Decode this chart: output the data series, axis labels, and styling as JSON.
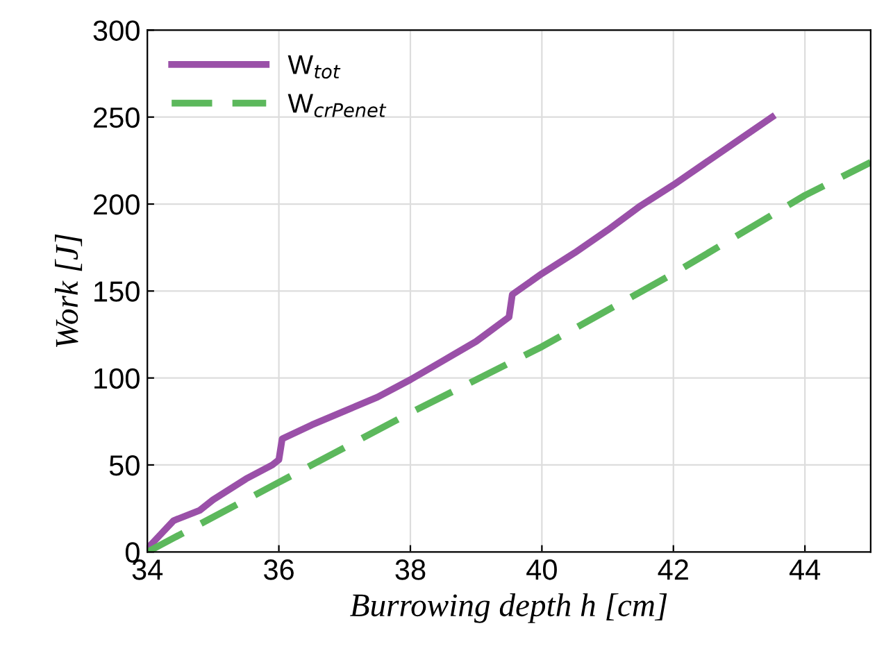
{
  "chart_data": {
    "type": "line",
    "xlabel": "Burrowing depth h [cm]",
    "ylabel": "Work [J]",
    "xlim": [
      34,
      45
    ],
    "xticks": [
      34,
      36,
      38,
      40,
      42,
      44
    ],
    "ylim": [
      0,
      300
    ],
    "yticks": [
      0,
      50,
      100,
      150,
      200,
      250,
      300
    ],
    "grid": true,
    "legend": "top left",
    "marker": "none",
    "series": [
      {
        "name": "W$_{tot}$",
        "color": "#9a50a8",
        "line_style": "solid",
        "x": [
          34,
          34.2,
          34.4,
          34.8,
          35,
          35.5,
          35.9,
          36,
          36.05,
          36.5,
          37,
          37.5,
          38,
          38.5,
          39,
          39.5,
          39.55,
          40,
          40.5,
          41,
          41.5,
          42,
          42.5,
          43,
          43.5
        ],
        "values": [
          2,
          10,
          18,
          24,
          30,
          42,
          50,
          53,
          65,
          73,
          81,
          89,
          99,
          110,
          121,
          135,
          148,
          160,
          172,
          185,
          199,
          211,
          224,
          237,
          250
        ]
      },
      {
        "name": "W$_{crPenet}$",
        "color": "#5cb85c",
        "line_style": "dashed",
        "x": [
          34,
          36,
          38,
          40,
          42,
          44,
          45
        ],
        "values": [
          0,
          40,
          80,
          118,
          160,
          205,
          224
        ]
      }
    ]
  }
}
